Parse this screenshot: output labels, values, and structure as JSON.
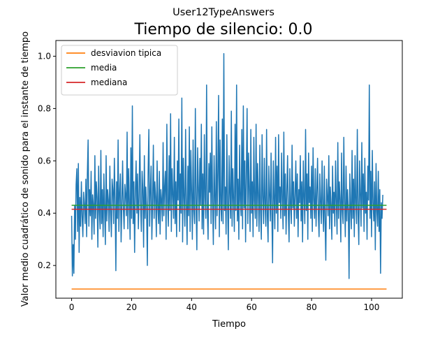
{
  "chart_data": {
    "type": "line",
    "suptitle": "User12TypeAnswers",
    "title": "Tiempo de silencio: 0.0",
    "xlabel": "Tiempo",
    "ylabel": "Valor medio cuadrático de sonido para el instante de tiempo",
    "xlim": [
      -5.25,
      110.25
    ],
    "ylim": [
      0.075,
      1.06
    ],
    "xticks": [
      0,
      20,
      40,
      60,
      80,
      100
    ],
    "yticks": [
      0.2,
      0.4,
      0.6,
      0.8,
      1.0
    ],
    "xtick_labels": [
      "0",
      "20",
      "40",
      "60",
      "80",
      "100"
    ],
    "ytick_labels": [
      "0.2",
      "0.4",
      "0.6",
      "0.8",
      "1.0"
    ],
    "grid": false,
    "legend_position": "top-left",
    "series": [
      {
        "color": "#1f77b4",
        "x_start": 0,
        "x_step": 0.25,
        "values": [
          0.39,
          0.16,
          0.28,
          0.17,
          0.43,
          0.3,
          0.51,
          0.57,
          0.33,
          0.59,
          0.25,
          0.46,
          0.35,
          0.52,
          0.39,
          0.31,
          0.48,
          0.43,
          0.36,
          0.53,
          0.31,
          0.55,
          0.68,
          0.35,
          0.49,
          0.39,
          0.56,
          0.3,
          0.47,
          0.43,
          0.32,
          0.62,
          0.38,
          0.52,
          0.46,
          0.27,
          0.58,
          0.41,
          0.34,
          0.64,
          0.36,
          0.49,
          0.31,
          0.55,
          0.42,
          0.28,
          0.62,
          0.37,
          0.49,
          0.45,
          0.33,
          0.58,
          0.41,
          0.31,
          0.53,
          0.49,
          0.36,
          0.61,
          0.45,
          0.18,
          0.52,
          0.38,
          0.68,
          0.33,
          0.48,
          0.55,
          0.29,
          0.43,
          0.6,
          0.42,
          0.34,
          0.51,
          0.47,
          0.39,
          0.71,
          0.34,
          0.57,
          0.44,
          0.3,
          0.65,
          0.38,
          0.81,
          0.36,
          0.52,
          0.25,
          0.48,
          0.6,
          0.4,
          0.55,
          0.34,
          0.46,
          0.7,
          0.43,
          0.33,
          0.56,
          0.49,
          0.27,
          0.62,
          0.38,
          0.5,
          0.42,
          0.2,
          0.55,
          0.72,
          0.35,
          0.48,
          0.58,
          0.3,
          0.44,
          0.66,
          0.38,
          0.52,
          0.46,
          0.31,
          0.6,
          0.42,
          0.36,
          0.56,
          0.32,
          0.49,
          0.45,
          0.37,
          0.67,
          0.39,
          0.5,
          0.56,
          0.3,
          0.74,
          0.44,
          0.35,
          0.62,
          0.41,
          0.78,
          0.33,
          0.57,
          0.47,
          0.38,
          0.69,
          0.36,
          0.52,
          0.31,
          0.6,
          0.45,
          0.76,
          0.33,
          0.55,
          0.4,
          0.84,
          0.29,
          0.61,
          0.46,
          0.35,
          0.72,
          0.43,
          0.28,
          0.58,
          0.39,
          0.73,
          0.33,
          0.64,
          0.48,
          0.3,
          0.68,
          0.41,
          0.36,
          0.8,
          0.44,
          0.26,
          0.65,
          0.5,
          0.37,
          0.61,
          0.43,
          0.74,
          0.34,
          0.55,
          0.32,
          0.7,
          0.46,
          0.38,
          0.89,
          0.41,
          0.3,
          0.59,
          0.48,
          0.63,
          0.36,
          0.73,
          0.44,
          0.28,
          0.62,
          0.46,
          0.34,
          0.75,
          0.39,
          0.55,
          0.85,
          0.31,
          0.68,
          0.43,
          0.37,
          0.76,
          0.36,
          1.01,
          0.41,
          0.5,
          0.32,
          0.7,
          0.44,
          0.26,
          0.62,
          0.48,
          0.38,
          0.79,
          0.35,
          0.57,
          0.45,
          0.33,
          0.74,
          0.41,
          0.89,
          0.37,
          0.53,
          0.3,
          0.66,
          0.45,
          0.39,
          0.72,
          0.34,
          0.81,
          0.42,
          0.6,
          0.29,
          0.55,
          0.8,
          0.36,
          0.63,
          0.49,
          0.33,
          0.72,
          0.4,
          0.52,
          0.31,
          0.69,
          0.45,
          0.38,
          0.74,
          0.35,
          0.59,
          0.47,
          0.33,
          0.66,
          0.41,
          0.3,
          0.7,
          0.46,
          0.36,
          0.61,
          0.43,
          0.35,
          0.72,
          0.39,
          0.29,
          0.58,
          0.47,
          0.37,
          0.63,
          0.41,
          0.21,
          0.6,
          0.46,
          0.34,
          0.69,
          0.4,
          0.58,
          0.33,
          0.7,
          0.44,
          0.5,
          0.38,
          0.63,
          0.45,
          0.34,
          0.71,
          0.39,
          0.55,
          0.32,
          0.48,
          0.62,
          0.4,
          0.29,
          0.57,
          0.43,
          0.36,
          0.66,
          0.42,
          0.52,
          0.35,
          0.47,
          0.6,
          0.38,
          0.55,
          0.31,
          0.49,
          0.44,
          0.62,
          0.37,
          0.52,
          0.29,
          0.6,
          0.46,
          0.36,
          0.72,
          0.41,
          0.55,
          0.3,
          0.63,
          0.44,
          0.5,
          0.38,
          0.58,
          0.33,
          0.65,
          0.45,
          0.38,
          0.57,
          0.35,
          0.48,
          0.61,
          0.4,
          0.31,
          0.55,
          0.44,
          0.36,
          0.6,
          0.42,
          0.33,
          0.58,
          0.37,
          0.22,
          0.53,
          0.46,
          0.39,
          0.62,
          0.34,
          0.5,
          0.43,
          0.3,
          0.58,
          0.4,
          0.48,
          0.35,
          0.6,
          0.44,
          0.32,
          0.67,
          0.38,
          0.52,
          0.45,
          0.29,
          0.63,
          0.41,
          0.36,
          0.69,
          0.44,
          0.31,
          0.58,
          0.37,
          0.49,
          0.41,
          0.15,
          0.55,
          0.42,
          0.34,
          0.64,
          0.38,
          0.53,
          0.31,
          0.62,
          0.44,
          0.36,
          0.72,
          0.4,
          0.28,
          0.6,
          0.47,
          0.35,
          0.67,
          0.42,
          0.55,
          0.33,
          0.61,
          0.4,
          0.48,
          0.3,
          0.58,
          0.45,
          0.89,
          0.38,
          0.56,
          0.31,
          0.64,
          0.44,
          0.37,
          0.52,
          0.26,
          0.59,
          0.41,
          0.35,
          0.56,
          0.33,
          0.49,
          0.17,
          0.44,
          0.38,
          0.47
        ]
      },
      {
        "name": "desviavion tipica",
        "color": "#ff7f0e",
        "x": [
          0,
          105
        ],
        "values": [
          0.11,
          0.11
        ]
      },
      {
        "name": "media",
        "color": "#2ca02c",
        "x": [
          0,
          105
        ],
        "values": [
          0.43,
          0.43
        ]
      },
      {
        "name": "mediana",
        "color": "#d62728",
        "x": [
          0,
          105
        ],
        "values": [
          0.415,
          0.415
        ]
      }
    ]
  }
}
